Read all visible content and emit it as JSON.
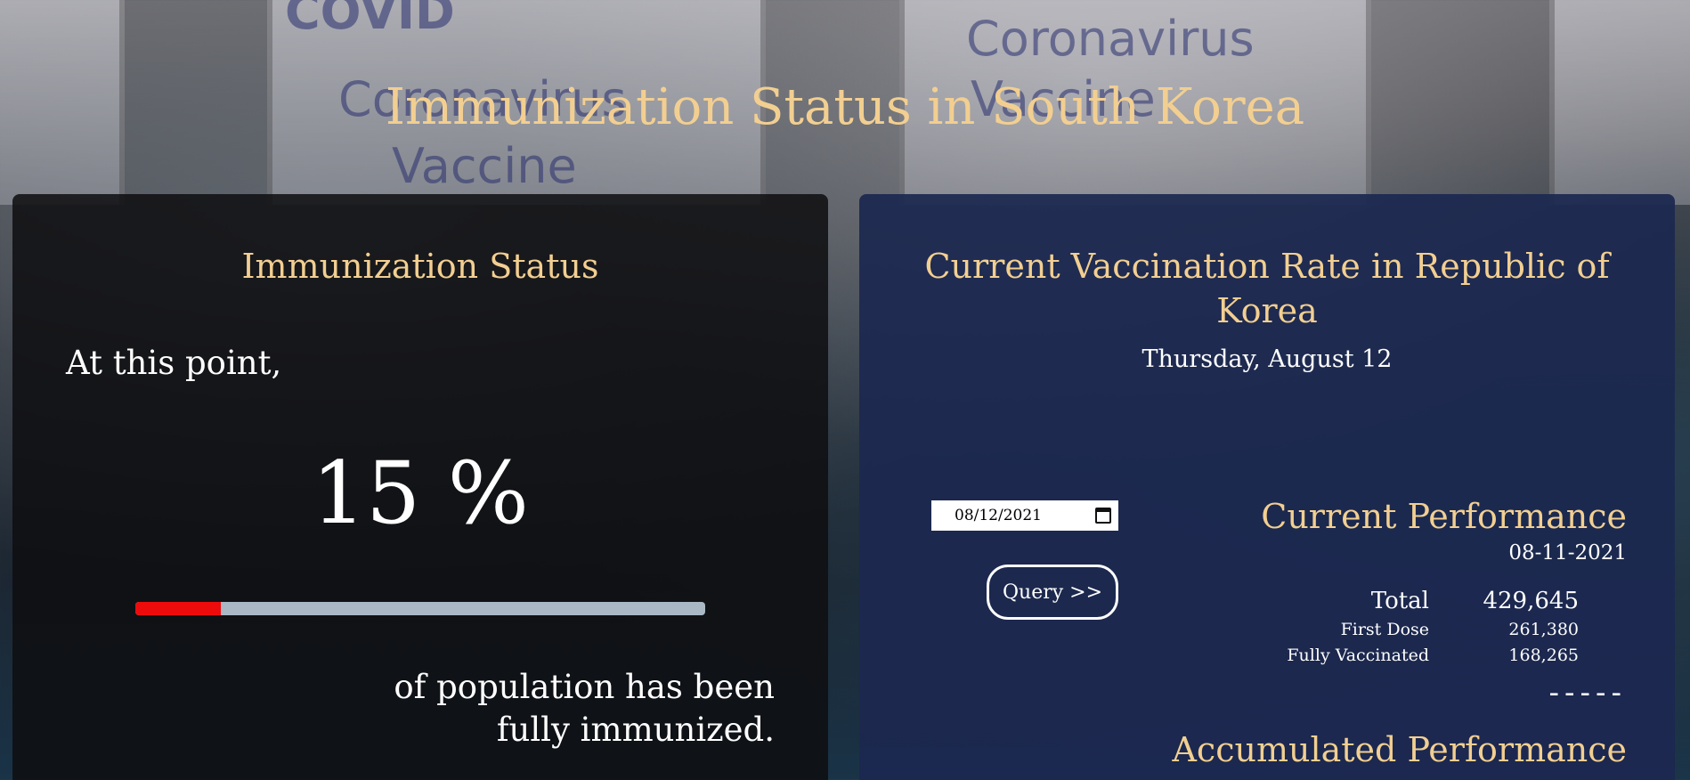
{
  "page": {
    "title": "Immunization Status in South Korea"
  },
  "background": {
    "texts": [
      "COVID",
      "Coronavirus",
      "Vaccine",
      "Coronavirus",
      "Vaccine"
    ]
  },
  "left_panel": {
    "heading": "Immunization Status",
    "intro": "At this point,",
    "percent_label": "15 %",
    "progress_fraction": 0.15,
    "outro_line1": "of population has been",
    "outro_line2": "fully immunized."
  },
  "right_panel": {
    "heading_line1": "Current Vaccination Rate in Republic of",
    "heading_line2": "Korea",
    "date_label": "Thursday, August 12",
    "date_input_value": "08/12/2021",
    "query_button": "Query >>",
    "current": {
      "title": "Current Performance",
      "date": "08-11-2021",
      "rows": [
        {
          "label": "Total",
          "value": "429,645"
        },
        {
          "label": "First Dose",
          "value": "261,380"
        },
        {
          "label": "Fully Vaccinated",
          "value": "168,265"
        }
      ],
      "separator": "-----"
    },
    "accumulated": {
      "title": "Accumulated Performance"
    }
  },
  "colors": {
    "accent": "#f2cf91",
    "progress_fill": "#ee0b0b",
    "progress_track": "#a9b8c4",
    "right_panel_bg": "#1c2850",
    "left_panel_bg": "#0e0e10"
  }
}
